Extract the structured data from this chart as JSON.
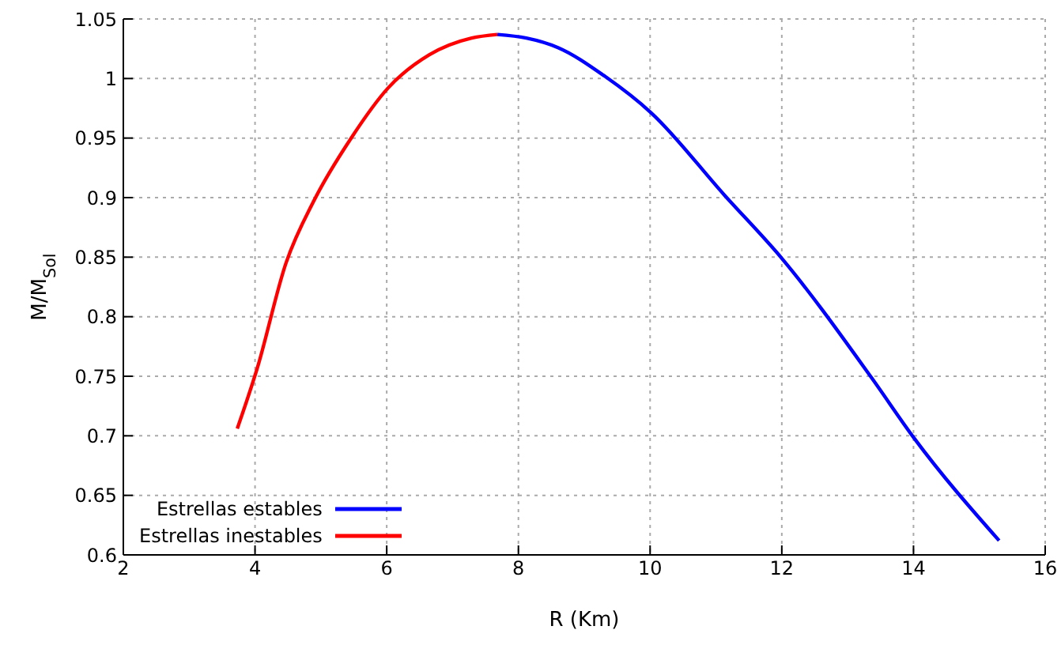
{
  "chart_data": {
    "type": "line",
    "xlabel": "R (Km)",
    "ylabel": "M/M$_{Sol}$",
    "xlim": [
      2,
      16
    ],
    "xticks": [
      2,
      4,
      6,
      8,
      10,
      12,
      14,
      16
    ],
    "ylim": [
      0.6,
      1.05
    ],
    "yticks": [
      0.6,
      0.65,
      0.7,
      0.75,
      0.8,
      0.85,
      0.9,
      0.95,
      1,
      1.05
    ],
    "grid": true,
    "legend": "bottom left",
    "marker": "none",
    "line_style": "solid",
    "series": [
      {
        "name": "Estrellas estables",
        "color": "#0000ff",
        "x": [
          7.68,
          8.12,
          8.6,
          9.31,
          10.02,
          11.13,
          12.0,
          13.36,
          14.01,
          15.3
        ],
        "values": [
          1.037,
          1.034,
          1.026,
          1.002,
          0.971,
          0.902,
          0.849,
          0.749,
          0.698,
          0.612
        ]
      },
      {
        "name": "Estrellas inestables",
        "color": "#ff0000",
        "x": [
          3.73,
          4.03,
          4.47,
          4.9,
          5.46,
          6.02,
          6.65,
          7.29,
          7.68
        ],
        "values": [
          0.706,
          0.756,
          0.845,
          0.898,
          0.95,
          0.992,
          1.02,
          1.034,
          1.037
        ]
      }
    ]
  }
}
